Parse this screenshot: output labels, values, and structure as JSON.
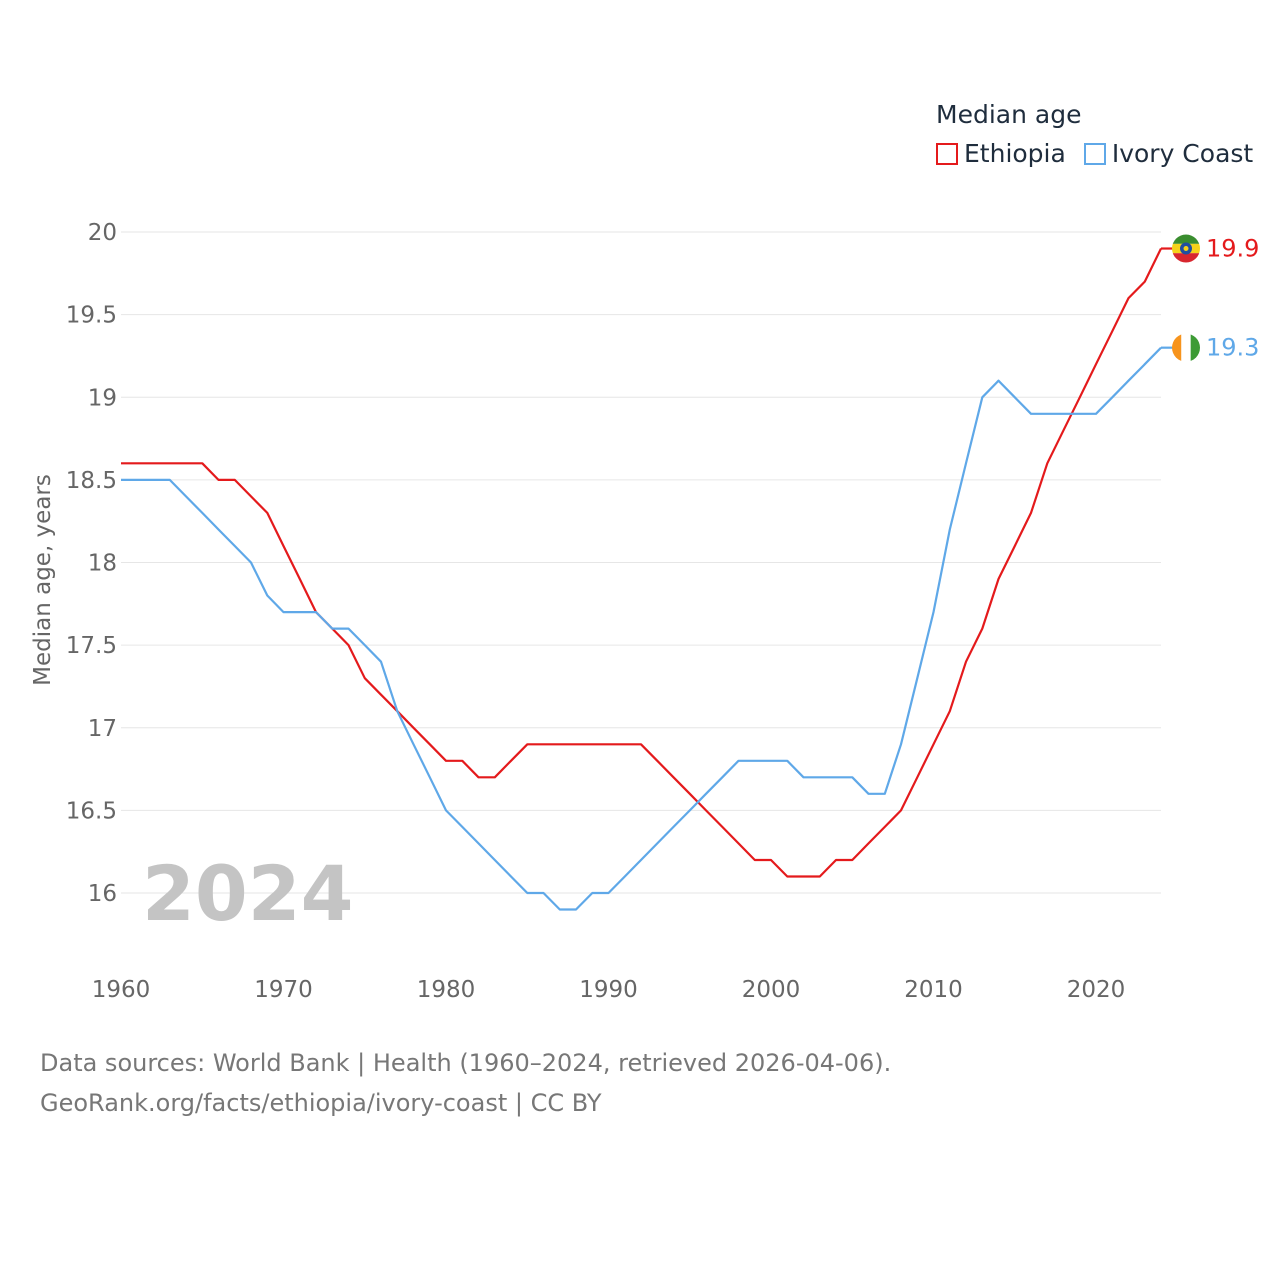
{
  "chart_data": {
    "type": "line",
    "title": "Median age",
    "ylabel": "Median age, years",
    "xlabel": "",
    "xlim": [
      1960,
      2024
    ],
    "ylim": [
      15.6,
      20.1
    ],
    "x_ticks": [
      1960,
      1970,
      1980,
      1990,
      2000,
      2010,
      2020
    ],
    "y_ticks": [
      16,
      16.5,
      17,
      17.5,
      18,
      18.5,
      19,
      19.5,
      20
    ],
    "grid": true,
    "legend_position": "top-right",
    "year_label": "2024",
    "x": [
      1960,
      1961,
      1962,
      1963,
      1964,
      1965,
      1966,
      1967,
      1968,
      1969,
      1970,
      1971,
      1972,
      1973,
      1974,
      1975,
      1976,
      1977,
      1978,
      1979,
      1980,
      1981,
      1982,
      1983,
      1984,
      1985,
      1986,
      1987,
      1988,
      1989,
      1990,
      1991,
      1992,
      1993,
      1994,
      1995,
      1996,
      1997,
      1998,
      1999,
      2000,
      2001,
      2002,
      2003,
      2004,
      2005,
      2006,
      2007,
      2008,
      2009,
      2010,
      2011,
      2012,
      2013,
      2014,
      2015,
      2016,
      2017,
      2018,
      2019,
      2020,
      2021,
      2022,
      2023,
      2024
    ],
    "series": [
      {
        "name": "Ethiopia",
        "color": "#e41a1c",
        "end_label": "19.9",
        "flag": "ethiopia-flag",
        "values": [
          18.6,
          18.6,
          18.6,
          18.6,
          18.6,
          18.6,
          18.5,
          18.5,
          18.4,
          18.3,
          18.1,
          17.9,
          17.7,
          17.6,
          17.5,
          17.3,
          17.2,
          17.1,
          17.0,
          16.9,
          16.8,
          16.8,
          16.7,
          16.7,
          16.8,
          16.9,
          16.9,
          16.9,
          16.9,
          16.9,
          16.9,
          16.9,
          16.9,
          16.8,
          16.7,
          16.6,
          16.5,
          16.4,
          16.3,
          16.2,
          16.2,
          16.1,
          16.1,
          16.1,
          16.2,
          16.2,
          16.3,
          16.4,
          16.5,
          16.7,
          16.9,
          17.1,
          17.4,
          17.6,
          17.9,
          18.1,
          18.3,
          18.6,
          18.8,
          19.0,
          19.2,
          19.4,
          19.6,
          19.7,
          19.9
        ]
      },
      {
        "name": "Ivory Coast",
        "color": "#5fa8e8",
        "end_label": "19.3",
        "flag": "ivory-coast-flag",
        "values": [
          18.5,
          18.5,
          18.5,
          18.5,
          18.4,
          18.3,
          18.2,
          18.1,
          18.0,
          17.8,
          17.7,
          17.7,
          17.7,
          17.6,
          17.6,
          17.5,
          17.4,
          17.1,
          16.9,
          16.7,
          16.5,
          16.4,
          16.3,
          16.2,
          16.1,
          16.0,
          16.0,
          15.9,
          15.9,
          16.0,
          16.0,
          16.1,
          16.2,
          16.3,
          16.4,
          16.5,
          16.6,
          16.7,
          16.8,
          16.8,
          16.8,
          16.8,
          16.7,
          16.7,
          16.7,
          16.7,
          16.6,
          16.6,
          16.9,
          17.3,
          17.7,
          18.2,
          18.6,
          19.0,
          19.1,
          19.0,
          18.9,
          18.9,
          18.9,
          18.9,
          18.9,
          19.0,
          19.1,
          19.2,
          19.3
        ]
      }
    ]
  },
  "footer": {
    "line1": "Data sources: World Bank | Health (1960–2024, retrieved 2026-04-06).",
    "line2": "GeoRank.org/facts/ethiopia/ivory-coast | CC BY"
  }
}
